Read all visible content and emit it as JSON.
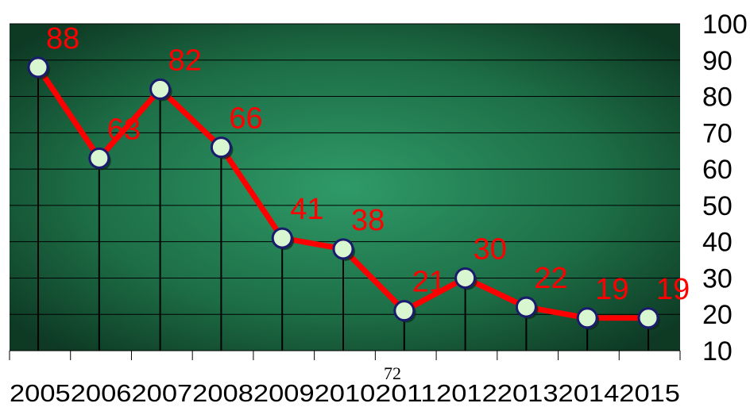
{
  "chart_data": {
    "type": "line",
    "categories": [
      "2005",
      "2006",
      "2007",
      "2008",
      "2009",
      "2010",
      "2011",
      "2012",
      "2013",
      "2014",
      "2015"
    ],
    "series": [
      {
        "values": [
          88,
          63,
          82,
          66,
          41,
          38,
          21,
          30,
          22,
          19,
          19
        ]
      }
    ],
    "data_labels": [
      "88",
      "63",
      "82",
      "66",
      "41",
      "38",
      "21",
      "30",
      "22",
      "19",
      "19"
    ],
    "ylim": [
      10,
      100
    ],
    "yticks": [
      "10",
      "20",
      "30",
      "40",
      "50",
      "60",
      "70",
      "80",
      "90",
      "100"
    ],
    "y_axis_position": "right",
    "grid": true,
    "drop_lines": true,
    "colors": {
      "line": "#ff0000",
      "marker_fill": "#d8f7d0",
      "marker_stroke": "#1a1a6e",
      "label": "#ff0000",
      "background_center": "#2f9a68",
      "background_edge": "#0e3a24"
    }
  },
  "page_number": "72"
}
